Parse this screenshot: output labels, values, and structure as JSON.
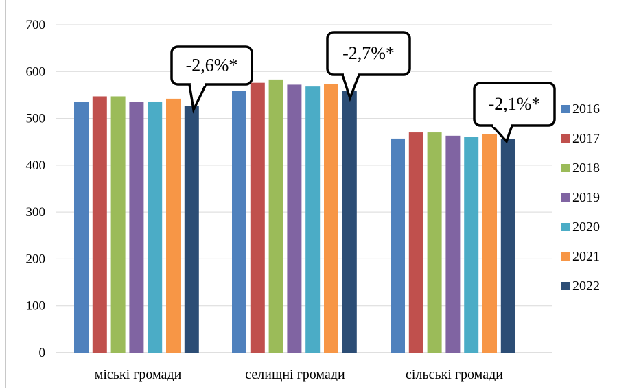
{
  "chart_data": {
    "type": "bar",
    "categories": [
      "міські громади",
      "селищні громади",
      "сільські громади"
    ],
    "series": [
      {
        "name": "2016",
        "color": "#4f81bd",
        "values": [
          535,
          559,
          457
        ]
      },
      {
        "name": "2017",
        "color": "#c0504d",
        "values": [
          547,
          576,
          470
        ]
      },
      {
        "name": "2018",
        "color": "#9bbb59",
        "values": [
          547,
          583,
          470
        ]
      },
      {
        "name": "2019",
        "color": "#8064a2",
        "values": [
          535,
          572,
          463
        ]
      },
      {
        "name": "2020",
        "color": "#4bacc6",
        "values": [
          536,
          568,
          461
        ]
      },
      {
        "name": "2021",
        "color": "#f79646",
        "values": [
          542,
          574,
          467
        ]
      },
      {
        "name": "2022",
        "color": "#2c4d75",
        "values": [
          527,
          559,
          456
        ]
      }
    ],
    "ylim": [
      0,
      700
    ],
    "yticks": [
      "0",
      "100",
      "200",
      "300",
      "400",
      "500",
      "600",
      "700"
    ],
    "grid": true,
    "legend_position": "right",
    "callouts": [
      "-2,6%*",
      "-2,7%*",
      "-2,1%*"
    ],
    "title": "",
    "xlabel": "",
    "ylabel": ""
  }
}
